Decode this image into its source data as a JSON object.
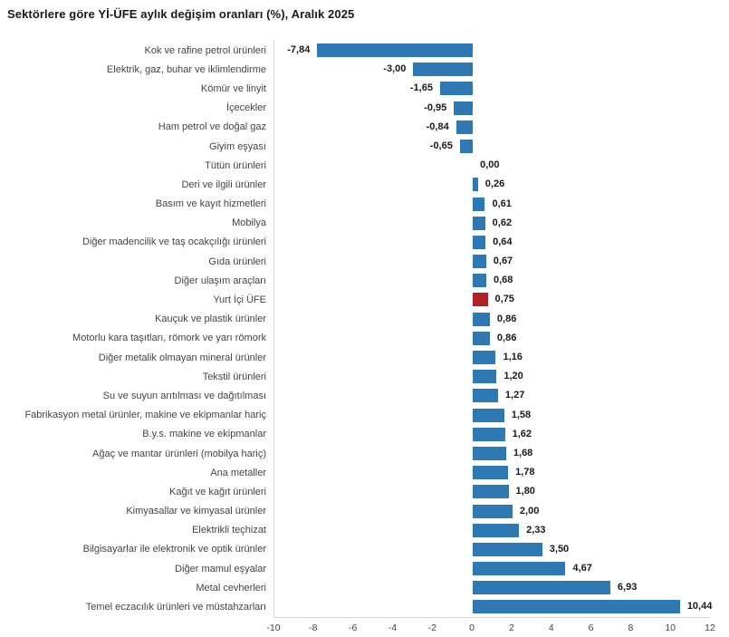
{
  "page": {
    "background": "#ffffff"
  },
  "chart_data": {
    "type": "bar",
    "orientation": "horizontal",
    "title": "Sektörlere göre Yİ-ÜFE aylık değişim oranları (%), Aralık 2025",
    "categories": [
      "Kok ve rafine petrol ürünleri",
      "Elektrik, gaz, buhar ve iklimlendirme",
      "Kömür ve linyit",
      "İçecekler",
      "Ham petrol ve doğal gaz",
      "Giyim eşyası",
      "Tütün ürünleri",
      "Deri ve ilgili ürünler",
      "Basım ve kayıt hizmetleri",
      "Mobilya",
      "Diğer madencilik ve taş ocakçılığı ürünleri",
      "Gıda ürünleri",
      "Diğer ulaşım araçları",
      "Yurt İçi ÜFE",
      "Kauçuk ve plastik ürünler",
      "Motorlu kara taşıtları, römork ve yarı römork",
      "Diğer metalik olmayan mineral ürünler",
      "Tekstil ürünleri",
      "Su ve suyun arıtılması ve dağıtılması",
      "Fabrikasyon metal ürünler, makine ve ekipmanlar hariç",
      "B.y.s. makine ve ekipmanlar",
      "Ağaç ve mantar ürünleri (mobilya hariç)",
      "Ana metaller",
      "Kağıt ve kağıt ürünleri",
      "Kimyasallar ve kimyasal ürünler",
      "Elektrikli teçhizat",
      "Bilgisayarlar ile elektronik ve optik ürünler",
      "Diğer mamul eşyalar",
      "Metal cevherleri",
      "Temel eczacılık ürünleri ve müstahzarları"
    ],
    "values": [
      -7.84,
      -3.0,
      -1.65,
      -0.95,
      -0.84,
      -0.65,
      0.0,
      0.26,
      0.61,
      0.62,
      0.64,
      0.67,
      0.68,
      0.75,
      0.86,
      0.86,
      1.16,
      1.2,
      1.27,
      1.58,
      1.62,
      1.68,
      1.78,
      1.8,
      2.0,
      2.33,
      3.5,
      4.67,
      6.93,
      10.44
    ],
    "value_labels": [
      "-7,84",
      "-3,00",
      "-1,65",
      "-0,95",
      "-0,84",
      "-0,65",
      "0,00",
      "0,26",
      "0,61",
      "0,62",
      "0,64",
      "0,67",
      "0,68",
      "0,75",
      "0,86",
      "0,86",
      "1,16",
      "1,20",
      "1,27",
      "1,58",
      "1,62",
      "1,68",
      "1,78",
      "1,80",
      "2,00",
      "2,33",
      "3,50",
      "4,67",
      "6,93",
      "10,44"
    ],
    "highlight_category": "Yurt İçi ÜFE",
    "xlabel": "",
    "ylabel": "",
    "xlim": [
      -10,
      12
    ],
    "x_tick_values": [
      -10,
      -8,
      -6,
      -4,
      -2,
      0,
      2,
      4,
      6,
      8,
      10,
      12
    ],
    "x_tick_labels": [
      "-10",
      "-8",
      "-6",
      "-4",
      "-2",
      "0",
      "2",
      "4",
      "6",
      "8",
      "10",
      "12"
    ],
    "grid": false,
    "legend": "none",
    "colors": {
      "bar": "#2e78b4",
      "highlight": "#b02026",
      "axis_line": "#d9d9d9",
      "category_text": "#444444",
      "value_text": "#1a1a1a",
      "title_text": "#1a1a1a"
    }
  }
}
